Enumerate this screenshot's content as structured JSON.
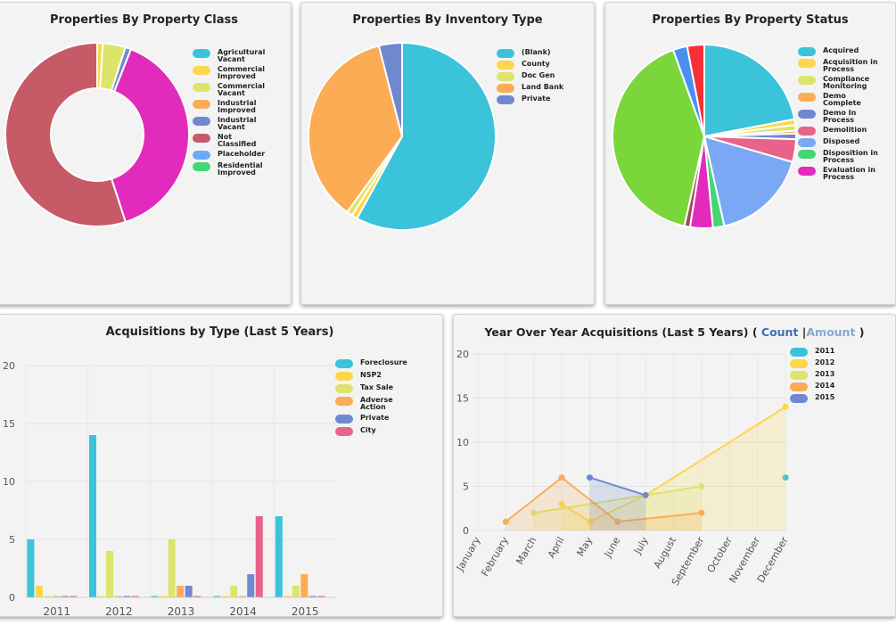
{
  "chart_data": [
    {
      "type": "donut",
      "title": "Properties By Property Class",
      "categories": [
        "Agricultural Vacant",
        "Commercial Improved",
        "Commercial Vacant",
        "Industrial Improved",
        "Industrial Vacant",
        null,
        "Not Classified",
        "Placeholder",
        "Residential Improved"
      ],
      "values": [
        0,
        1,
        4,
        0,
        1,
        39,
        55,
        0,
        0
      ],
      "colors": [
        "#3bc3da",
        "#fdd74a",
        "#dde46c",
        "#fbac55",
        "#6e89cf",
        "#e22bbd",
        "#c65a66",
        "#6aaaf7",
        "#43d774"
      ]
    },
    {
      "type": "pie",
      "title": "Properties By Inventory Type",
      "categories": [
        "(Blank)",
        "County",
        "Doc Gen",
        "Land Bank",
        "Private"
      ],
      "values": [
        58,
        1,
        1,
        36,
        4
      ],
      "colors": [
        "#3bc3da",
        "#fdd74a",
        "#dde46c",
        "#fbac55",
        "#6e89cf"
      ]
    },
    {
      "type": "pie",
      "title": "Properties By Property Status",
      "categories": [
        "Acquired",
        "Acquisition in Process",
        "Compliance Monitoring",
        "Demo Complete",
        "Demo In Process",
        "Demolition",
        "Disposed",
        "Disposition in Process",
        "Evaluation in Process",
        null,
        null,
        null,
        null
      ],
      "values": [
        22,
        1,
        1,
        0.5,
        1,
        4,
        17,
        2,
        4,
        1,
        41,
        2.5,
        3
      ],
      "colors": [
        "#3bc3da",
        "#fdd74a",
        "#dde46c",
        "#fbac55",
        "#6e89cf",
        "#e7638a",
        "#7aa8f5",
        "#43d774",
        "#e22bbd",
        "#a14a5a",
        "#7ad63a",
        "#4a90f0",
        "#f53036"
      ]
    },
    {
      "type": "bar",
      "title": "Acquisitions by Type (Last 5 Years)",
      "categories": [
        "2011",
        "2012",
        "2013",
        "2014",
        "2015"
      ],
      "series": [
        {
          "name": "Foreclosure",
          "color": "#3bc3da",
          "values": [
            5,
            14,
            0,
            0,
            7
          ]
        },
        {
          "name": "NSP2",
          "color": "#fdd74a",
          "values": [
            1,
            0,
            0,
            0,
            0
          ]
        },
        {
          "name": "Tax Sale",
          "color": "#dde46c",
          "values": [
            0,
            4,
            5,
            1,
            1
          ]
        },
        {
          "name": "Adverse Action",
          "color": "#fbac55",
          "values": [
            0,
            0,
            1,
            0,
            2
          ]
        },
        {
          "name": "Private",
          "color": "#6e89cf",
          "values": [
            0,
            0,
            1,
            2,
            0
          ]
        },
        {
          "name": "City",
          "color": "#e7638a",
          "values": [
            0,
            0,
            0,
            7,
            0
          ]
        }
      ],
      "ylim": [
        0,
        20
      ],
      "yticks": [
        0,
        5,
        10,
        15,
        20
      ],
      "grid": true
    },
    {
      "type": "line",
      "title": "Year Over Year Acquisitions (Last 5 Years) (",
      "toggle_count": "Count",
      "separator": "|",
      "toggle_amount": "Amount",
      "title_end": ")",
      "categories": [
        "January",
        "February",
        "March",
        "April",
        "May",
        "June",
        "July",
        "August",
        "September",
        "October",
        "November",
        "December"
      ],
      "series": [
        {
          "name": "2011",
          "color": "#3bc3da",
          "x": [
            "December"
          ],
          "values": [
            6
          ]
        },
        {
          "name": "2012",
          "color": "#fdd74a",
          "x": [
            "April",
            "May",
            "July",
            "December"
          ],
          "values": [
            3,
            1,
            4,
            14
          ]
        },
        {
          "name": "2013",
          "color": "#dde46c",
          "x": [
            "March",
            "July",
            "September"
          ],
          "values": [
            2,
            4,
            5
          ]
        },
        {
          "name": "2014",
          "color": "#fbac55",
          "x": [
            "February",
            "April",
            "June",
            "September"
          ],
          "values": [
            1,
            6,
            1,
            2
          ]
        },
        {
          "name": "2015",
          "color": "#6e89cf",
          "x": [
            "May",
            "July"
          ],
          "values": [
            6,
            4
          ]
        }
      ],
      "ylim": [
        0,
        20
      ],
      "yticks": [
        0,
        5,
        10,
        15,
        20
      ],
      "grid": true
    }
  ]
}
